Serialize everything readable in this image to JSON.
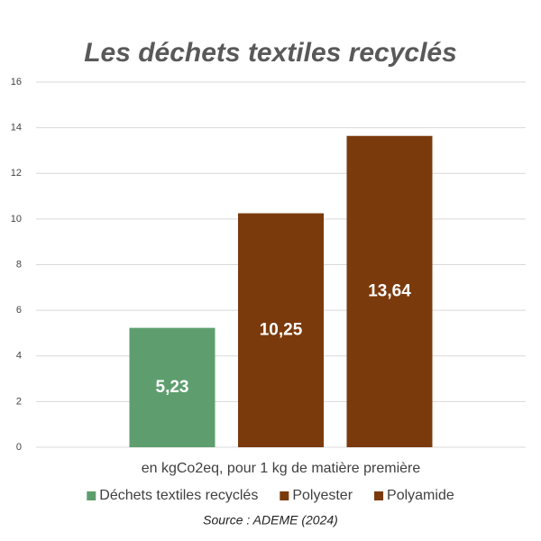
{
  "chart_data": {
    "type": "bar",
    "title": "Les déchets textiles recyclés",
    "categories": [
      "en kgCo2eq, pour 1 kg de matière première"
    ],
    "series": [
      {
        "name": "Déchets textiles recyclés",
        "color": "#5e9e6e",
        "values": [
          5.23
        ],
        "value_labels": [
          "5,23"
        ]
      },
      {
        "name": "Polyester",
        "color": "#7b3a0c",
        "values": [
          10.25
        ],
        "value_labels": [
          "10,25"
        ]
      },
      {
        "name": "Polyamide",
        "color": "#7b3a0c",
        "values": [
          13.64
        ],
        "value_labels": [
          "13,64"
        ]
      }
    ],
    "ylim": [
      0,
      16
    ],
    "yticks": [
      0,
      2,
      4,
      6,
      8,
      10,
      12,
      14,
      16
    ],
    "grid": true,
    "legend": "bottom",
    "source": "Source : ADEME (2024)"
  }
}
